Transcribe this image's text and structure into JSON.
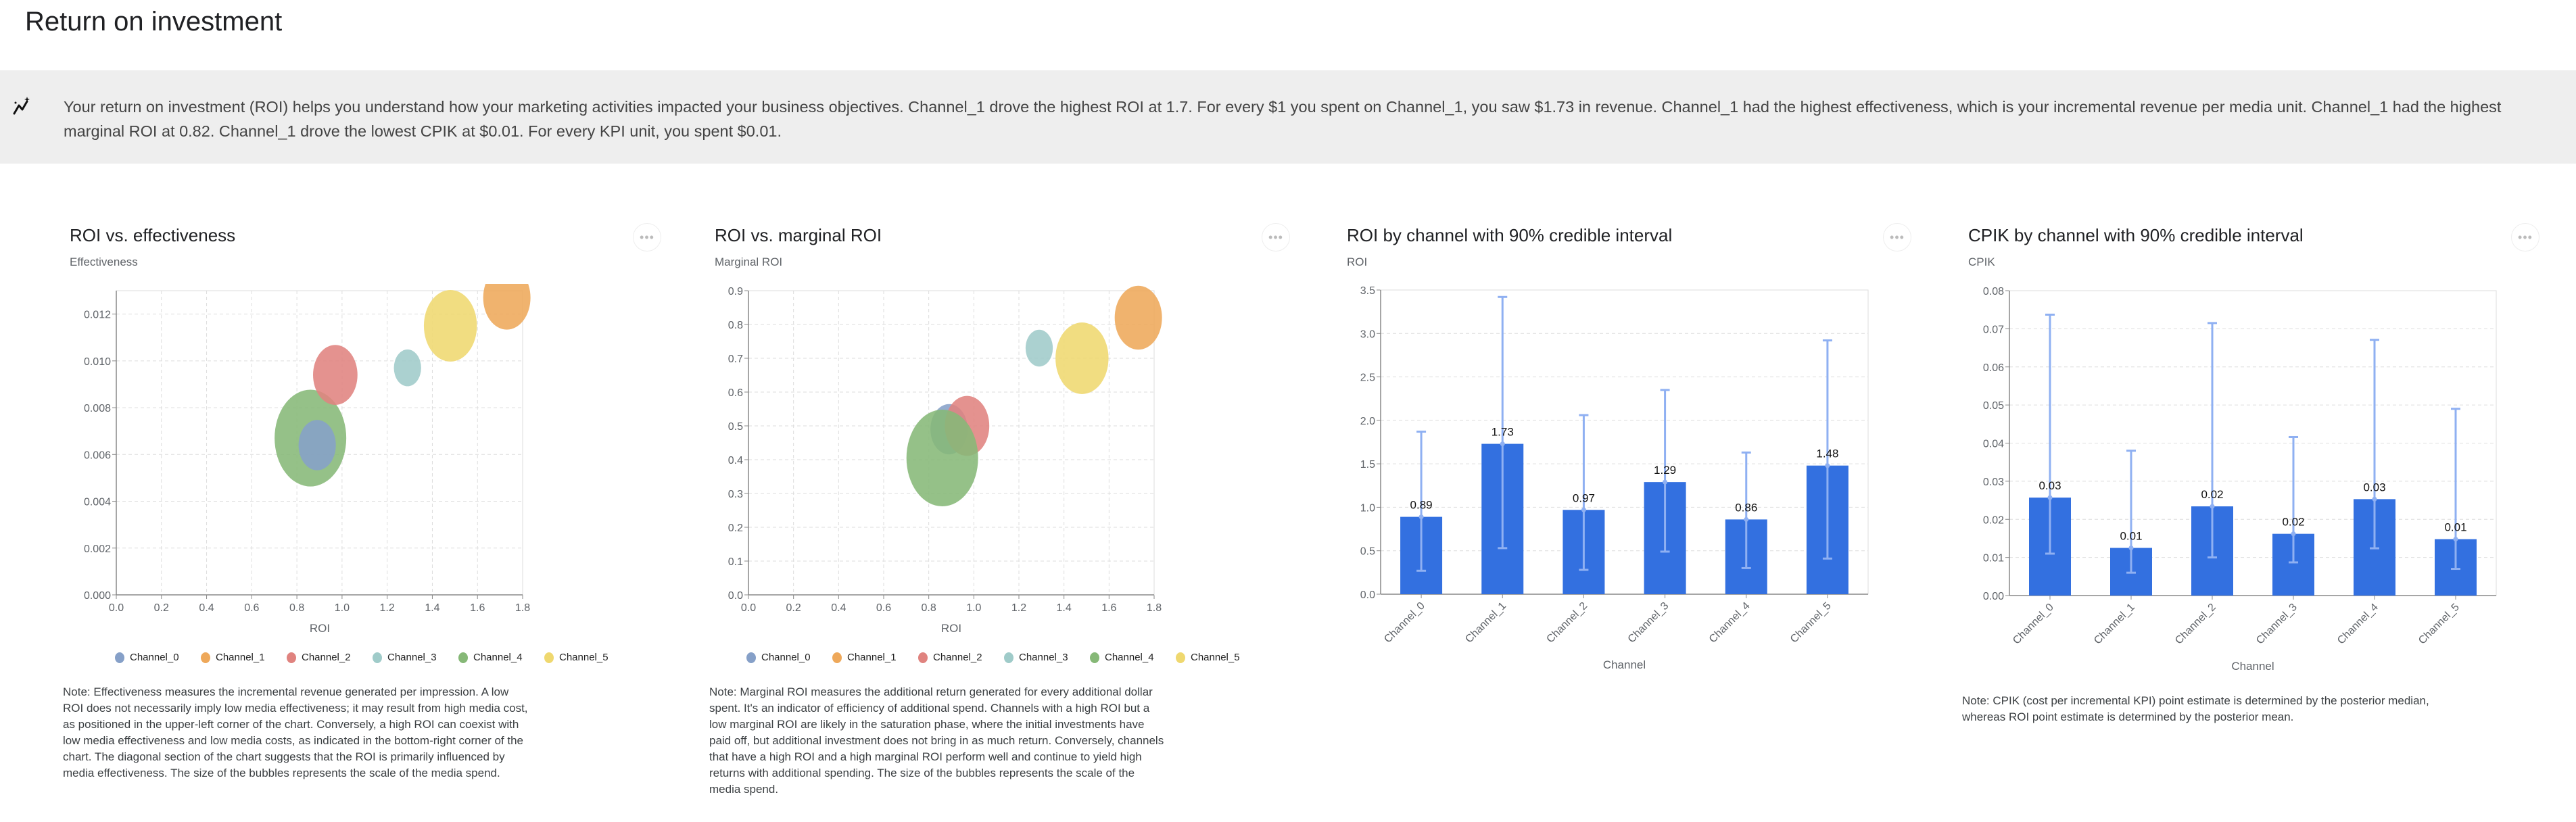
{
  "page": {
    "title": "Return on investment"
  },
  "banner": {
    "icon": "insights-sparkle-icon",
    "text": "Your return on investment (ROI) helps you understand how your marketing activities impacted your business objectives. Channel_1 drove the highest ROI at 1.7. For every $1 you spent on Channel_1, you saw $1.73 in revenue. Channel_1 had the highest effectiveness, which is your incremental revenue per media unit. Channel_1 had the highest marginal ROI at 0.82. Channel_1 drove the lowest CPIK at $0.01. For every KPI unit, you spent $0.01."
  },
  "more_button_label": "•••",
  "legend": [
    {
      "label": "Channel_0",
      "color": "#86a0c8"
    },
    {
      "label": "Channel_1",
      "color": "#eea85a"
    },
    {
      "label": "Channel_2",
      "color": "#e0837f"
    },
    {
      "label": "Channel_3",
      "color": "#9fcbc9"
    },
    {
      "label": "Channel_4",
      "color": "#86b877"
    },
    {
      "label": "Channel_5",
      "color": "#efd86f"
    }
  ],
  "cards": [
    {
      "title": "ROI vs. effectiveness",
      "subtitle": "Effectiveness",
      "note": "Note: Effectiveness measures the incremental revenue generated per impression. A low ROI does not necessarily imply low media effectiveness; it may result from high media cost, as positioned in the upper-left corner of the chart. Conversely, a high ROI can coexist with low media effectiveness and low media costs, as indicated in the bottom-right corner of the chart. The diagonal section of the chart suggests that the ROI is primarily influenced by media effectiveness. The size of the bubbles represents the scale of the media spend."
    },
    {
      "title": "ROI vs. marginal ROI",
      "subtitle": "Marginal ROI",
      "note": "Note: Marginal ROI measures the additional return generated for every additional dollar spent. It's an indicator of efficiency of additional spend. Channels with a high ROI but a low marginal ROI are likely in the saturation phase, where the initial investments have paid off, but additional investment does not bring in as much return. Conversely, channels that have a high ROI and a high marginal ROI perform well and continue to yield high returns with additional spending. The size of the bubbles represents the scale of the media spend."
    },
    {
      "title": "ROI by channel with 90% credible interval",
      "subtitle": "ROI"
    },
    {
      "title": "CPIK by channel with 90% credible interval",
      "subtitle": "CPIK",
      "note": "Note: CPIK (cost per incremental KPI) point estimate is determined by the posterior median, whereas ROI point estimate is determined by the posterior mean."
    }
  ],
  "chart_data": [
    {
      "type": "scatter",
      "title": "ROI vs. effectiveness",
      "xlabel": "ROI",
      "ylabel": "Effectiveness",
      "xlim": [
        0,
        1.8
      ],
      "ylim": [
        0,
        0.013
      ],
      "xticks": [
        "0.0",
        "0.2",
        "0.4",
        "0.6",
        "0.8",
        "1.0",
        "1.2",
        "1.4",
        "1.6",
        "1.8"
      ],
      "yticks": [
        "0.000",
        "0.002",
        "0.004",
        "0.006",
        "0.008",
        "0.010",
        "0.012"
      ],
      "grid": true,
      "legend": "bottom",
      "points": [
        {
          "name": "Channel_4",
          "x": 0.86,
          "y": 0.0067,
          "relative_spend": 1.0,
          "color": "#86b877"
        },
        {
          "name": "Channel_0",
          "x": 0.89,
          "y": 0.0064,
          "relative_spend": 0.52,
          "color": "#86a0c8"
        },
        {
          "name": "Channel_2",
          "x": 0.97,
          "y": 0.0094,
          "relative_spend": 0.62,
          "color": "#e0837f"
        },
        {
          "name": "Channel_3",
          "x": 1.29,
          "y": 0.0097,
          "relative_spend": 0.38,
          "color": "#9fcbc9"
        },
        {
          "name": "Channel_5",
          "x": 1.48,
          "y": 0.0115,
          "relative_spend": 0.74,
          "color": "#efd86f"
        },
        {
          "name": "Channel_1",
          "x": 1.73,
          "y": 0.0127,
          "relative_spend": 0.66,
          "color": "#eea85a"
        }
      ]
    },
    {
      "type": "scatter",
      "title": "ROI vs. marginal ROI",
      "xlabel": "ROI",
      "ylabel": "Marginal ROI",
      "xlim": [
        0,
        1.8
      ],
      "ylim": [
        0,
        0.9
      ],
      "xticks": [
        "0.0",
        "0.2",
        "0.4",
        "0.6",
        "0.8",
        "1.0",
        "1.2",
        "1.4",
        "1.6",
        "1.8"
      ],
      "yticks": [
        "0.0",
        "0.1",
        "0.2",
        "0.3",
        "0.4",
        "0.5",
        "0.6",
        "0.7",
        "0.8",
        "0.9"
      ],
      "grid": true,
      "legend": "bottom",
      "points": [
        {
          "name": "Channel_0",
          "x": 0.89,
          "y": 0.49,
          "relative_spend": 0.52,
          "color": "#86a0c8"
        },
        {
          "name": "Channel_2",
          "x": 0.97,
          "y": 0.5,
          "relative_spend": 0.62,
          "color": "#e0837f"
        },
        {
          "name": "Channel_4",
          "x": 0.86,
          "y": 0.405,
          "relative_spend": 1.0,
          "color": "#86b877"
        },
        {
          "name": "Channel_3",
          "x": 1.29,
          "y": 0.73,
          "relative_spend": 0.38,
          "color": "#9fcbc9"
        },
        {
          "name": "Channel_5",
          "x": 1.48,
          "y": 0.7,
          "relative_spend": 0.74,
          "color": "#efd86f"
        },
        {
          "name": "Channel_1",
          "x": 1.73,
          "y": 0.82,
          "relative_spend": 0.66,
          "color": "#eea85a"
        }
      ]
    },
    {
      "type": "bar",
      "title": "ROI by channel with 90% credible interval",
      "xlabel": "Channel",
      "ylabel": "ROI",
      "ylim": [
        0,
        3.5
      ],
      "yticks": [
        "0.0",
        "0.5",
        "1.0",
        "1.5",
        "2.0",
        "2.5",
        "3.0",
        "3.5"
      ],
      "grid": true,
      "bar_color": "#3370e0",
      "interval_color": "#8fb0f2",
      "categories": [
        "Channel_0",
        "Channel_1",
        "Channel_2",
        "Channel_3",
        "Channel_4",
        "Channel_5"
      ],
      "values": [
        0.89,
        1.73,
        0.97,
        1.29,
        0.86,
        1.48
      ],
      "labels": [
        "0.89",
        "1.73",
        "0.97",
        "1.29",
        "0.86",
        "1.48"
      ],
      "ci_low": [
        0.27,
        0.53,
        0.28,
        0.49,
        0.3,
        0.41
      ],
      "ci_high": [
        1.87,
        3.42,
        2.06,
        2.35,
        1.63,
        2.92
      ]
    },
    {
      "type": "bar",
      "title": "CPIK by channel with 90% credible interval",
      "xlabel": "Channel",
      "ylabel": "CPIK",
      "ylim": [
        0,
        0.08
      ],
      "yticks": [
        "0.00",
        "0.01",
        "0.02",
        "0.03",
        "0.04",
        "0.05",
        "0.06",
        "0.07",
        "0.08"
      ],
      "grid": true,
      "bar_color": "#3370e0",
      "interval_color": "#8fb0f2",
      "categories": [
        "Channel_0",
        "Channel_1",
        "Channel_2",
        "Channel_3",
        "Channel_4",
        "Channel_5"
      ],
      "values": [
        0.0257,
        0.0125,
        0.0234,
        0.0162,
        0.0253,
        0.0148
      ],
      "labels": [
        "0.03",
        "0.01",
        "0.02",
        "0.02",
        "0.03",
        "0.01"
      ],
      "ci_low": [
        0.011,
        0.006,
        0.01,
        0.0087,
        0.0124,
        0.007
      ],
      "ci_high": [
        0.0737,
        0.038,
        0.0715,
        0.0416,
        0.0671,
        0.049
      ]
    }
  ]
}
